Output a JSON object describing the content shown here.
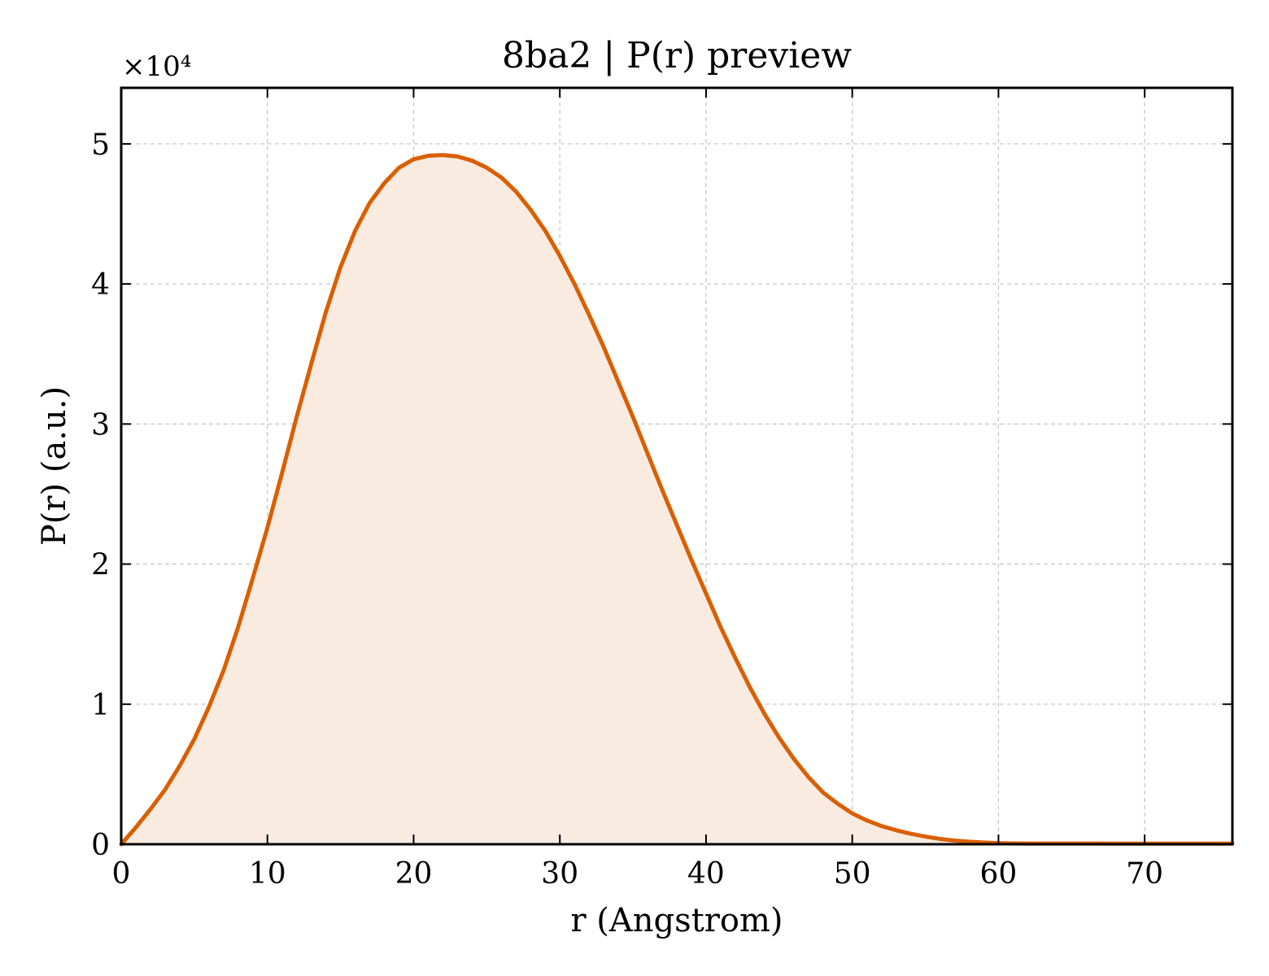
{
  "chart_data": {
    "type": "area",
    "title": "8ba2 | P(r) preview",
    "xlabel": "r (Angstrom)",
    "ylabel": "P(r) (a.u.)",
    "y_multiplier_label": "×10⁴",
    "y_scale_factor": 10000,
    "xlim": [
      0,
      76
    ],
    "ylim": [
      0,
      54000
    ],
    "x_ticks": [
      0,
      10,
      20,
      30,
      40,
      50,
      60,
      70
    ],
    "x_tick_labels": [
      "0",
      "10",
      "20",
      "30",
      "40",
      "50",
      "60",
      "70"
    ],
    "y_ticks": [
      0,
      10000,
      20000,
      30000,
      40000,
      50000
    ],
    "y_tick_labels": [
      "0",
      "1",
      "2",
      "3",
      "4",
      "5"
    ],
    "grid": true,
    "colors": {
      "line": "#d95f02",
      "fill": "#f9ebe0"
    },
    "series": [
      {
        "x": [
          0,
          1,
          2,
          3,
          4,
          5,
          6,
          7,
          8,
          9,
          10,
          11,
          12,
          13,
          14,
          15,
          16,
          17,
          18,
          19,
          20,
          21,
          22,
          23,
          24,
          25,
          26,
          27,
          28,
          29,
          30,
          31,
          32,
          33,
          34,
          35,
          36,
          37,
          38,
          39,
          40,
          41,
          42,
          43,
          44,
          45,
          46,
          47,
          48,
          49,
          50,
          51,
          52,
          53,
          54,
          55,
          56,
          57,
          58,
          59,
          60,
          61,
          62,
          63,
          64,
          65,
          66,
          67,
          68,
          69,
          70,
          71,
          72,
          73,
          74,
          75,
          76
        ],
        "y": [
          0,
          1200,
          2500,
          3900,
          5600,
          7500,
          9800,
          12400,
          15500,
          19000,
          22600,
          26500,
          30500,
          34300,
          38000,
          41200,
          43800,
          45800,
          47200,
          48300,
          48900,
          49150,
          49200,
          49100,
          48800,
          48300,
          47600,
          46600,
          45300,
          43800,
          42000,
          40000,
          37800,
          35500,
          33000,
          30500,
          27900,
          25300,
          22800,
          20300,
          17900,
          15500,
          13300,
          11200,
          9300,
          7600,
          6100,
          4800,
          3700,
          2900,
          2200,
          1700,
          1300,
          1000,
          750,
          550,
          380,
          260,
          180,
          120,
          80,
          60,
          50,
          50,
          50,
          50,
          50,
          50,
          40,
          40,
          40,
          40,
          40,
          40,
          40,
          40,
          40
        ]
      }
    ]
  }
}
